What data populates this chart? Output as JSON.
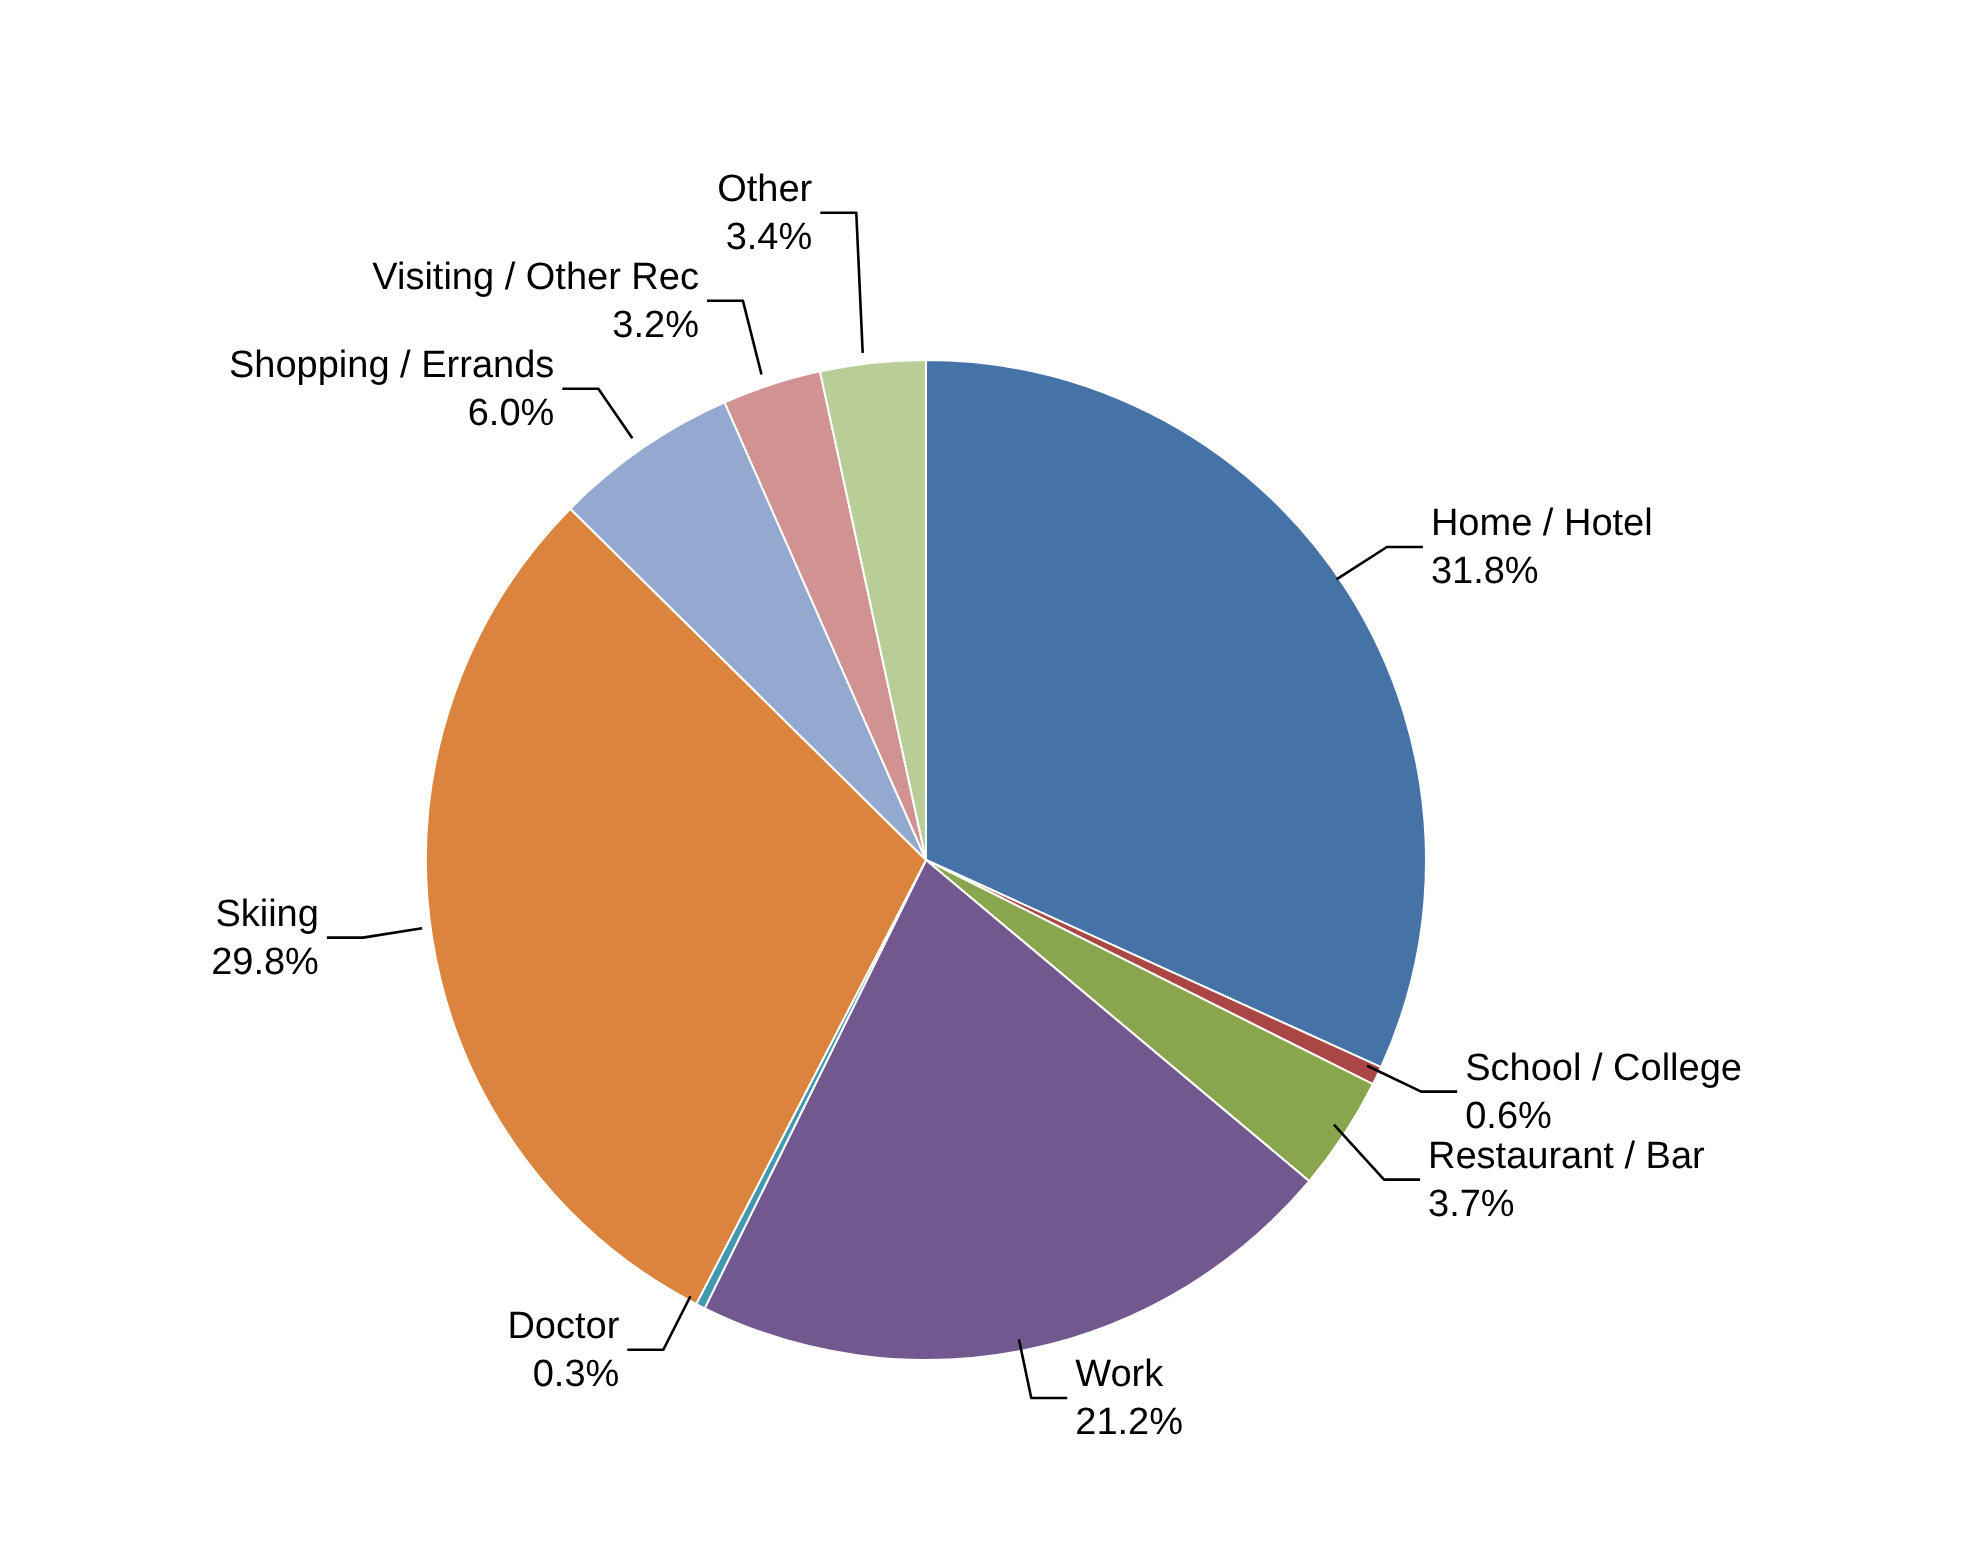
{
  "chart_data": {
    "type": "pie",
    "categories": [
      "Home / Hotel",
      "School / College",
      "Restaurant / Bar",
      "Work",
      "Doctor",
      "Skiing",
      "Shopping / Errands",
      "Visiting / Other Rec",
      "Other"
    ],
    "values": [
      31.8,
      0.6,
      3.7,
      21.2,
      0.3,
      29.8,
      6.0,
      3.2,
      3.4
    ],
    "value_labels": [
      "31.8%",
      "0.6%",
      "3.7%",
      "21.2%",
      "0.3%",
      "29.8%",
      "6.0%",
      "3.2%",
      "3.4%"
    ],
    "colors": [
      "#4573a7",
      "#aa4643",
      "#89a54e",
      "#71588f",
      "#4198af",
      "#db843d",
      "#93a9cf",
      "#d19392",
      "#b9cd96"
    ],
    "legend": false
  }
}
